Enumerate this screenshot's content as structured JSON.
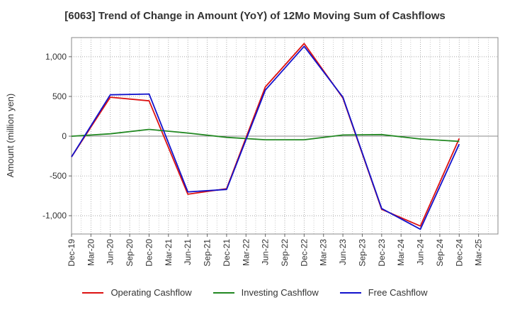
{
  "chart_data": {
    "type": "line",
    "title": "[6063]  Trend of Change in Amount (YoY) of 12Mo Moving Sum of Cashflows",
    "xlabel": "",
    "ylabel": "Amount (million yen)",
    "ylim": [
      -1230,
      1240
    ],
    "yticks": [
      1000,
      500,
      0,
      -500,
      -1000
    ],
    "ytick_labels": [
      "1,000",
      "500",
      "0",
      "-500",
      "-1,000"
    ],
    "categories": [
      "Dec-19",
      "Mar-20",
      "Jun-20",
      "Sep-20",
      "Dec-20",
      "Mar-21",
      "Jun-21",
      "Sep-21",
      "Dec-21",
      "Mar-22",
      "Jun-22",
      "Sep-22",
      "Dec-22",
      "Mar-23",
      "Jun-23",
      "Sep-23",
      "Dec-23",
      "Mar-24",
      "Jun-24",
      "Sep-24",
      "Dec-24",
      "Mar-25"
    ],
    "grid": true,
    "legend_position": "bottom",
    "series": [
      {
        "name": "Operating Cashflow",
        "color": "#dd1111",
        "values": [
          -260,
          null,
          490,
          null,
          445,
          null,
          -730,
          null,
          -660,
          null,
          620,
          null,
          1165,
          null,
          480,
          null,
          -920,
          null,
          -1130,
          null,
          -30,
          null
        ]
      },
      {
        "name": "Investing Cashflow",
        "color": "#228822",
        "values": [
          0,
          null,
          30,
          null,
          85,
          null,
          40,
          null,
          -15,
          null,
          -45,
          null,
          -45,
          null,
          15,
          null,
          20,
          null,
          -35,
          null,
          -65,
          null
        ]
      },
      {
        "name": "Free Cashflow",
        "color": "#1111cc",
        "values": [
          -260,
          null,
          520,
          null,
          530,
          null,
          -700,
          null,
          -670,
          null,
          580,
          null,
          1130,
          null,
          490,
          null,
          -910,
          null,
          -1170,
          null,
          -100,
          null
        ]
      }
    ]
  }
}
